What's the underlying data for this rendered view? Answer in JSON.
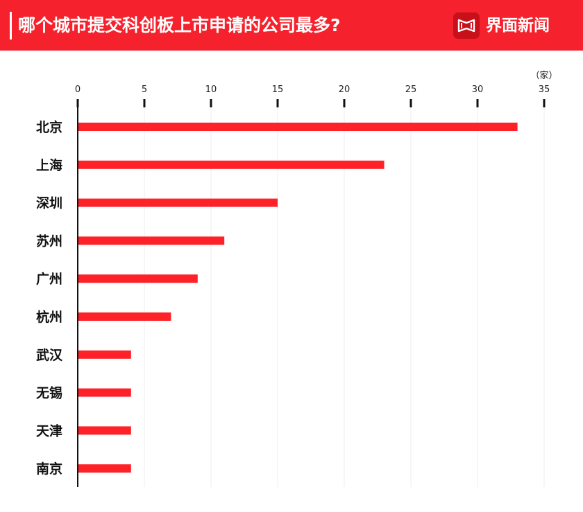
{
  "header": {
    "title": "哪个城市提交科创板上市申请的公司最多?",
    "brand": "界面新闻",
    "background_color": "#f5222d",
    "logo_icon": "jiemian-logo-icon"
  },
  "chart_data": {
    "type": "bar",
    "orientation": "horizontal",
    "title": "哪个城市提交科创板上市申请的公司最多?",
    "unit": "（家）",
    "xlabel": "",
    "ylabel": "",
    "xlim": [
      0,
      35
    ],
    "ticks": [
      0,
      5,
      10,
      15,
      20,
      25,
      30,
      35
    ],
    "grid": true,
    "legend": "none",
    "bar_color": "#ff2128",
    "categories": [
      "北京",
      "上海",
      "深圳",
      "苏州",
      "广州",
      "杭州",
      "武汉",
      "无锡",
      "天津",
      "南京"
    ],
    "values": [
      33,
      23,
      15,
      11,
      9,
      7,
      4,
      4,
      4,
      4
    ]
  }
}
